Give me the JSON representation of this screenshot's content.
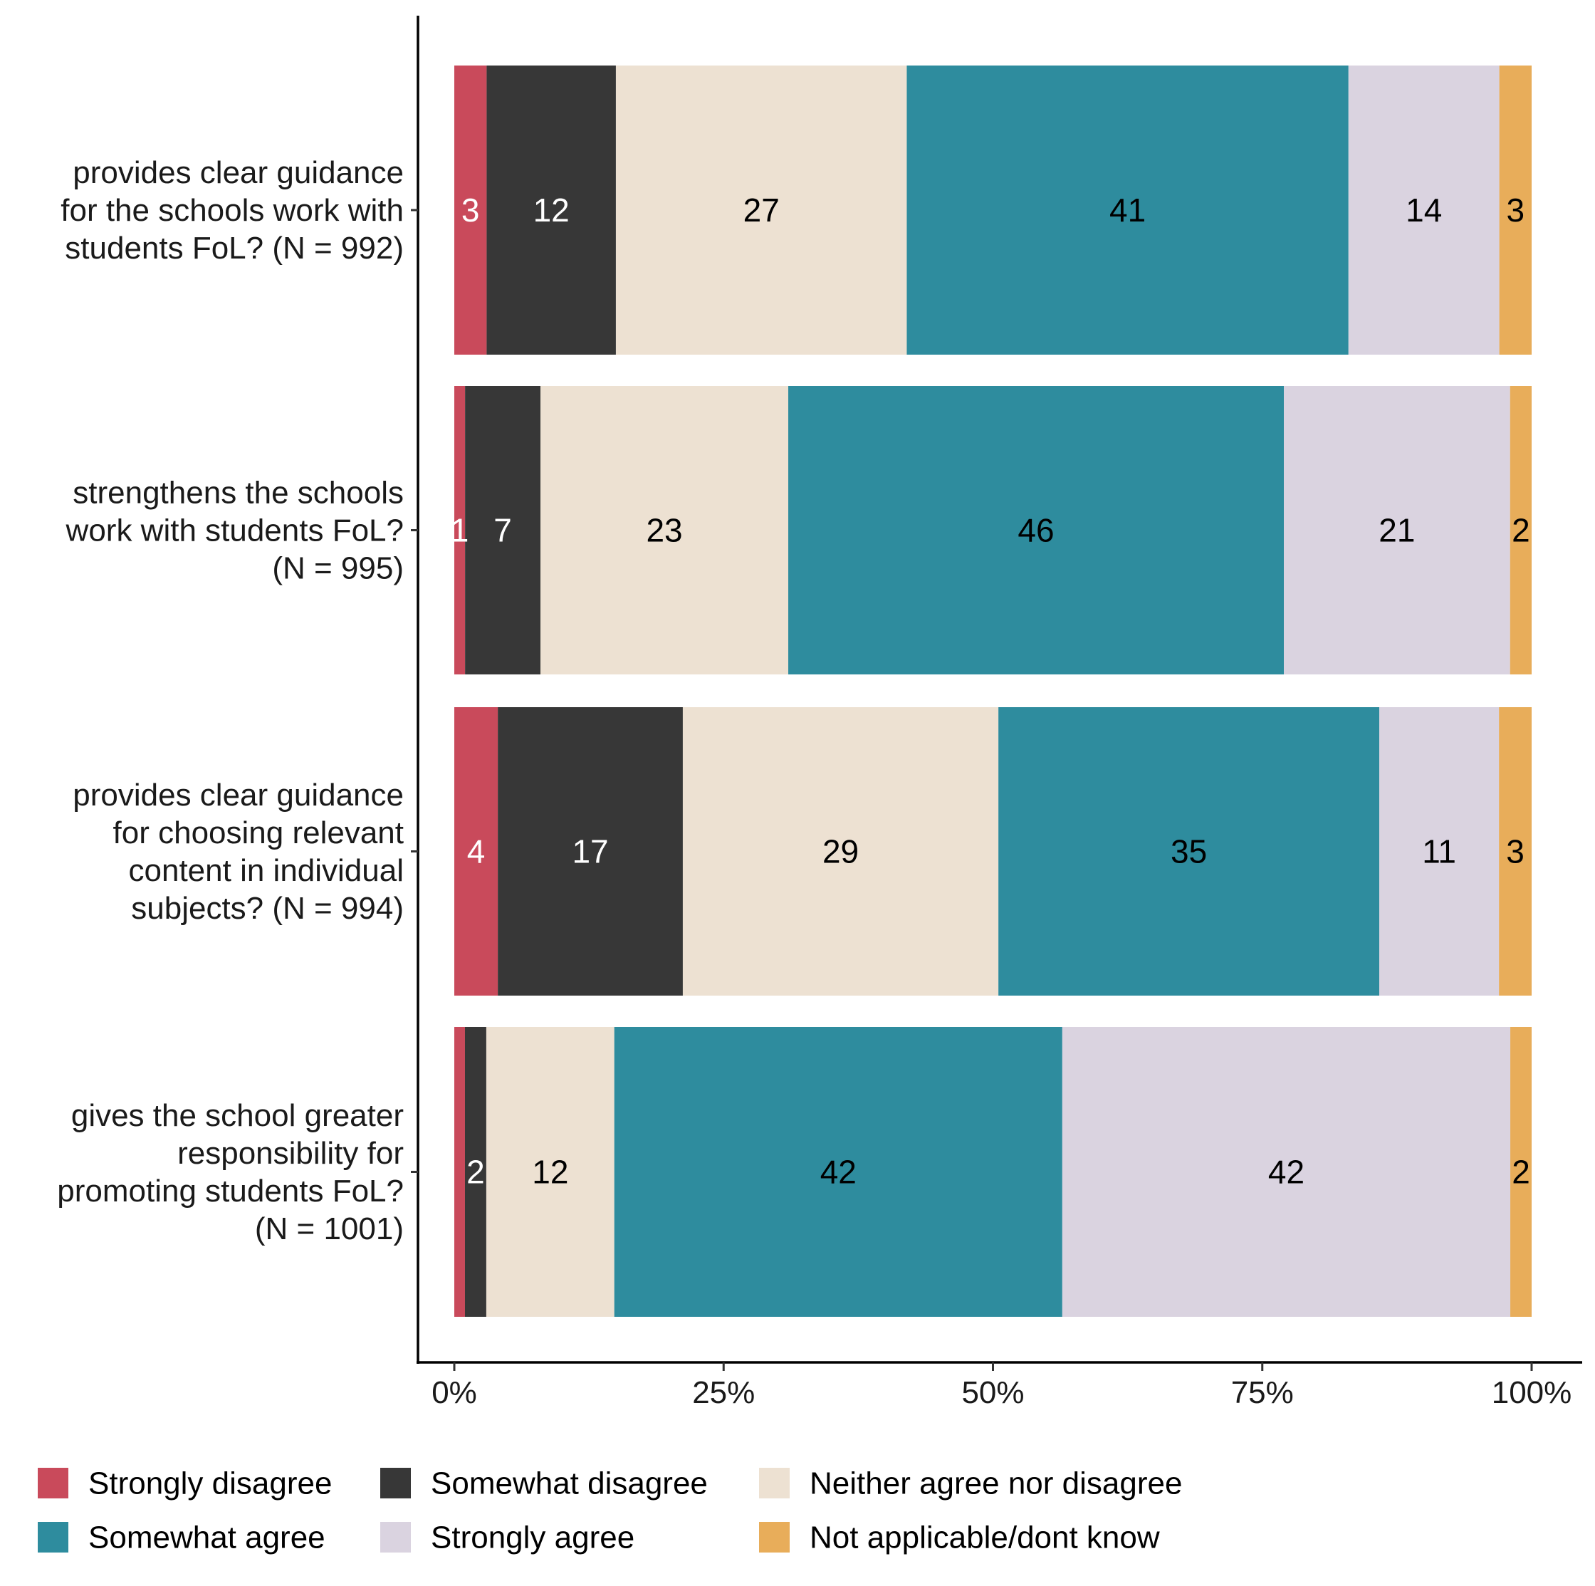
{
  "chart_data": {
    "type": "bar",
    "orientation": "horizontal",
    "stacked": true,
    "title": "",
    "xlabel": "",
    "ylabel": "",
    "xlim": [
      0,
      100
    ],
    "x_ticks": [
      "0%",
      "25%",
      "50%",
      "75%",
      "100%"
    ],
    "x_tick_values": [
      0,
      25,
      50,
      75,
      100
    ],
    "grid": false,
    "legend_position": "bottom",
    "categories": [
      [
        "provides clear guidance",
        "for the schools work with",
        "students FoL? (N = 992)"
      ],
      [
        "strengthens the schools",
        "work with students FoL?",
        "(N = 995)"
      ],
      [
        "provides clear guidance",
        "for choosing relevant",
        "content in individual",
        "subjects? (N = 994)"
      ],
      [
        "gives the school greater",
        "responsibility for",
        "promoting students FoL?",
        "(N = 1001)"
      ]
    ],
    "series": [
      {
        "name": "Strongly disagree",
        "color": "#C94A5B",
        "label_color": "#ffffff",
        "values": [
          3,
          1,
          4,
          1
        ]
      },
      {
        "name": "Somewhat disagree",
        "color": "#373737",
        "label_color": "#ffffff",
        "values": [
          12,
          7,
          17,
          2
        ]
      },
      {
        "name": "Neither agree nor disagree",
        "color": "#EDE1D2",
        "label_color": "#000000",
        "values": [
          27,
          23,
          29,
          12
        ]
      },
      {
        "name": "Somewhat agree",
        "color": "#2E8C9E",
        "label_color": "#000000",
        "values": [
          41,
          46,
          35,
          42
        ]
      },
      {
        "name": "Strongly agree",
        "color": "#DAD3E0",
        "label_color": "#000000",
        "values": [
          14,
          21,
          11,
          42
        ]
      },
      {
        "name": "Not applicable/dont know",
        "color": "#E8AD5A",
        "label_color": "#000000",
        "values": [
          3,
          2,
          3,
          2
        ]
      }
    ],
    "shown_labels": [
      [
        "3",
        "12",
        "27",
        "41",
        "14",
        "3"
      ],
      [
        "1",
        "7",
        "23",
        "46",
        "21",
        "2"
      ],
      [
        "4",
        "17",
        "29",
        "35",
        "11",
        "3"
      ],
      [
        "",
        "2",
        "12",
        "42",
        "42",
        "2"
      ]
    ]
  }
}
